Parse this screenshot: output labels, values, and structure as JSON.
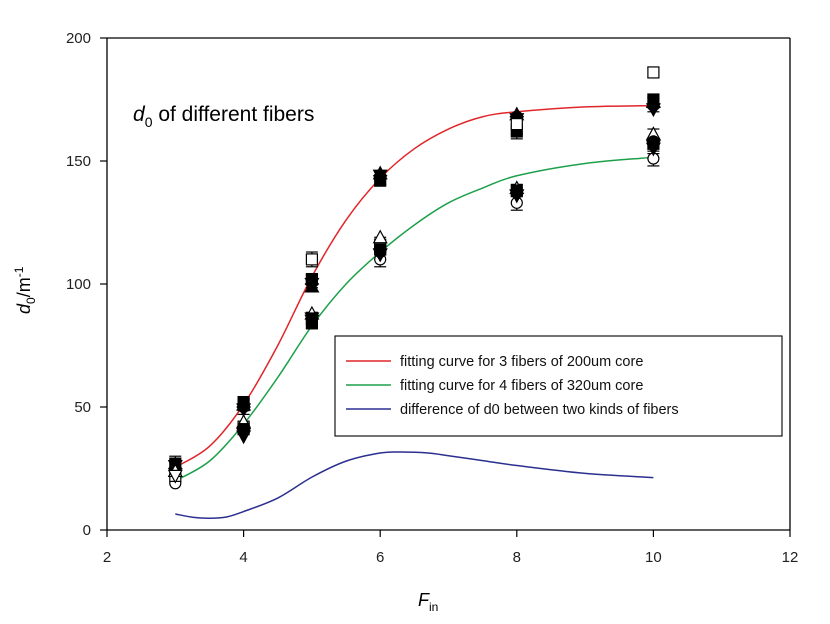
{
  "chart_data": {
    "type": "scatter",
    "annotation_main": "d",
    "annotation_sub": "0",
    "annotation_rest": " of different fibers",
    "xlabel_main": "F",
    "xlabel_sub": "in",
    "ylabel_main": "d",
    "ylabel_sub": "0",
    "ylabel_rest": "/m",
    "ylabel_sup": "-1",
    "xlim": [
      2,
      12
    ],
    "ylim": [
      0,
      200
    ],
    "x_ticks": [
      2,
      4,
      6,
      8,
      10,
      12
    ],
    "y_ticks": [
      0,
      50,
      100,
      150,
      200
    ],
    "x_tick_labels": [
      "2",
      "4",
      "6",
      "8",
      "10",
      "12"
    ],
    "y_tick_labels": [
      "0",
      "50",
      "100",
      "150",
      "200"
    ],
    "grid": false,
    "legend_position": "center-right",
    "legend": [
      {
        "label": "fitting curve for 3 fibers of 200um core",
        "color": "#e0262a"
      },
      {
        "label": "fitting curve for 4 fibers of 320um core",
        "color": "#1ea04a"
      },
      {
        "label": "difference of d0 between two kinds of fibers",
        "color": "#2b2f8f"
      }
    ],
    "curves": [
      {
        "name": "fitting curve for 3 fibers of 200um core",
        "color": "#e0262a",
        "x": [
          3,
          3.5,
          4,
          4.5,
          5,
          5.5,
          6,
          6.5,
          7,
          7.5,
          8,
          9,
          10
        ],
        "y": [
          25.5,
          34,
          51,
          75,
          103,
          126,
          143,
          155,
          163,
          168,
          170,
          172,
          172.5
        ]
      },
      {
        "name": "fitting curve for 4 fibers of 320um core",
        "color": "#1ea04a",
        "x": [
          3,
          3.5,
          4,
          4.5,
          5,
          5.5,
          6,
          6.5,
          7,
          7.5,
          8,
          9,
          10
        ],
        "y": [
          20,
          28,
          43,
          62,
          83,
          100,
          113,
          124,
          133,
          139,
          144,
          149,
          151.5
        ]
      },
      {
        "name": "difference of d0 between two kinds of fibers",
        "color": "#2b2f8f",
        "x": [
          3,
          3.25,
          3.5,
          3.75,
          4,
          4.5,
          5,
          5.5,
          6,
          6.3,
          6.7,
          7,
          7.5,
          8,
          9,
          10
        ],
        "y": [
          6.5,
          5.2,
          4.8,
          5.3,
          7.5,
          13,
          21.5,
          28,
          31.3,
          31.7,
          31.3,
          30.2,
          28.2,
          26.2,
          23,
          21.3
        ]
      }
    ],
    "series": [
      {
        "name": "filled circle",
        "marker": "circle",
        "filled": true,
        "points": [
          [
            3,
            25
          ],
          [
            4,
            50
          ],
          [
            5,
            101
          ],
          [
            6,
            143
          ],
          [
            8,
            168
          ],
          [
            10,
            173
          ]
        ]
      },
      {
        "name": "filled square",
        "marker": "square",
        "filled": true,
        "points": [
          [
            3,
            27
          ],
          [
            4,
            52
          ],
          [
            5,
            102
          ],
          [
            6,
            142
          ],
          [
            8,
            162
          ],
          [
            10,
            175
          ]
        ]
      },
      {
        "name": "filled triangle up",
        "marker": "triangle-up",
        "filled": true,
        "points": [
          [
            3,
            24
          ],
          [
            4,
            51
          ],
          [
            5,
            99
          ],
          [
            6,
            145
          ],
          [
            8,
            169
          ],
          [
            10,
            174
          ]
        ]
      },
      {
        "name": "filled triangle down",
        "marker": "triangle-down",
        "filled": true,
        "points": [
          [
            3,
            26
          ],
          [
            4,
            49
          ],
          [
            5,
            100
          ],
          [
            6,
            144
          ],
          [
            8,
            167
          ],
          [
            10,
            171
          ]
        ]
      },
      {
        "name": "filled diamond",
        "marker": "diamond",
        "filled": true,
        "points": [
          [
            3,
            25
          ],
          [
            4,
            50
          ],
          [
            5,
            100
          ],
          [
            6,
            144
          ],
          [
            8,
            168
          ],
          [
            10,
            172
          ]
        ]
      },
      {
        "name": "open circle",
        "marker": "circle",
        "filled": false,
        "points": [
          [
            3,
            19
          ],
          [
            4,
            41
          ],
          [
            5,
            84
          ],
          [
            6,
            110
          ],
          [
            8,
            133
          ],
          [
            10,
            151
          ]
        ]
      },
      {
        "name": "open square",
        "marker": "square",
        "filled": false,
        "points": [
          [
            3,
            22
          ],
          [
            4,
            42
          ],
          [
            5,
            110
          ],
          [
            6,
            116
          ],
          [
            8,
            165
          ],
          [
            10,
            186
          ]
        ]
      },
      {
        "name": "open triangle up",
        "marker": "triangle-up",
        "filled": false,
        "points": [
          [
            3,
            24
          ],
          [
            4,
            44
          ],
          [
            5,
            88
          ],
          [
            6,
            119
          ],
          [
            8,
            139
          ],
          [
            10,
            161
          ]
        ]
      },
      {
        "name": "open triangle down",
        "marker": "triangle-down",
        "filled": false,
        "points": [
          [
            3,
            22
          ],
          [
            4,
            39
          ],
          [
            5,
            85
          ],
          [
            6,
            112
          ],
          [
            8,
            136
          ],
          [
            10,
            156
          ]
        ]
      },
      {
        "name": "filled circle 320",
        "marker": "circle",
        "filled": true,
        "points": [
          [
            4,
            40
          ],
          [
            5,
            85
          ],
          [
            6,
            113
          ],
          [
            8,
            137
          ],
          [
            10,
            158
          ]
        ]
      },
      {
        "name": "filled square 320",
        "marker": "square",
        "filled": true,
        "points": [
          [
            4,
            41
          ],
          [
            5,
            84
          ],
          [
            6,
            114
          ],
          [
            8,
            138
          ],
          [
            10,
            157
          ]
        ]
      },
      {
        "name": "filled triangle down 320",
        "marker": "triangle-down",
        "filled": true,
        "points": [
          [
            4,
            38
          ],
          [
            5,
            86
          ],
          [
            6,
            112
          ],
          [
            8,
            136
          ],
          [
            10,
            155
          ]
        ]
      }
    ],
    "error_bars": [
      {
        "x": 3,
        "y": 27,
        "err": 3
      },
      {
        "x": 3,
        "y": 22,
        "err": 2.5
      },
      {
        "x": 4,
        "y": 51,
        "err": 2.5
      },
      {
        "x": 4,
        "y": 44,
        "err": 3
      },
      {
        "x": 5,
        "y": 101,
        "err": 2.5
      },
      {
        "x": 5,
        "y": 110,
        "err": 3
      },
      {
        "x": 5,
        "y": 86,
        "err": 2.5
      },
      {
        "x": 6,
        "y": 143,
        "err": 2.5
      },
      {
        "x": 6,
        "y": 116,
        "err": 3
      },
      {
        "x": 6,
        "y": 110,
        "err": 3
      },
      {
        "x": 8,
        "y": 165,
        "err": 4
      },
      {
        "x": 8,
        "y": 162,
        "err": 3
      },
      {
        "x": 8,
        "y": 138,
        "err": 2.5
      },
      {
        "x": 8,
        "y": 133,
        "err": 3
      },
      {
        "x": 10,
        "y": 186,
        "err": 2
      },
      {
        "x": 10,
        "y": 173,
        "err": 3
      },
      {
        "x": 10,
        "y": 160,
        "err": 3
      },
      {
        "x": 10,
        "y": 156,
        "err": 3
      },
      {
        "x": 10,
        "y": 151,
        "err": 3
      }
    ]
  }
}
